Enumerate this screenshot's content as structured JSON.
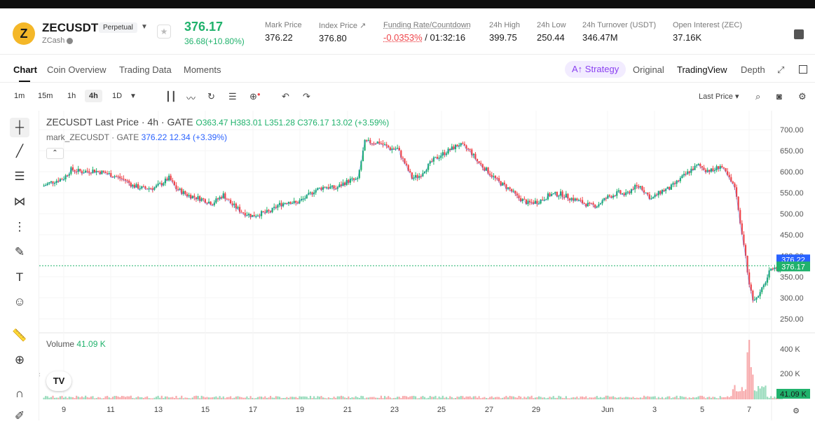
{
  "header": {
    "symbol": "ZECUSDT",
    "badge": "Perpetual",
    "subname": "ZCash",
    "coin_glyph": "Z",
    "last_price": "376.17",
    "change": "36.68(+10.80%)",
    "stats": [
      {
        "label": "Mark Price",
        "value": "376.22"
      },
      {
        "label": "Index Price ↗",
        "value": "376.80"
      },
      {
        "label": "Funding Rate/Countdown",
        "value_neg": "-0.0353%",
        "value_rest": " / 01:32:16"
      },
      {
        "label": "24h High",
        "value": "399.75"
      },
      {
        "label": "24h Low",
        "value": "250.44"
      },
      {
        "label": "24h Turnover (USDT)",
        "value": "346.47M"
      },
      {
        "label": "Open Interest (ZEC)",
        "value": "37.16K"
      }
    ]
  },
  "tabs": {
    "chart": "Chart",
    "coin_overview": "Coin Overview",
    "trading_data": "Trading Data",
    "moments": "Moments",
    "strategy": "Strategy",
    "original": "Original",
    "tradingview": "TradingView",
    "depth": "Depth"
  },
  "toolbar": {
    "timeframes": [
      "1m",
      "15m",
      "1h",
      "4h",
      "1D"
    ],
    "selected": "4h",
    "price_type": "Last Price ▾"
  },
  "legend": {
    "main_name": "ZECUSDT Last Price · 4h · GATE",
    "ohlc": "O363.47 H383.01 L351.28 C376.17 13.02 (+3.59%)",
    "mark_name": "mark_ZECUSDT · GATE",
    "mark_vals": "376.22 12.34 (+3.39%)",
    "volume_name": "Volume",
    "volume_val": "41.09 K"
  },
  "colors": {
    "up": "#20b26c",
    "down": "#ef454a",
    "mark": "#2962ff"
  },
  "chart_data": {
    "type": "candlestick",
    "x_ticks": [
      "9",
      "11",
      "13",
      "15",
      "17",
      "19",
      "21",
      "23",
      "25",
      "27",
      "29",
      "Jun",
      "3",
      "5",
      "7"
    ],
    "y_ticks": [
      700,
      650,
      600,
      550,
      500,
      450,
      400,
      350,
      300,
      250
    ],
    "y_tick_labels": [
      "700.00",
      "650.00",
      "600.00",
      "550.00",
      "500.00",
      "450.00",
      "400.00",
      "350.00",
      "300.00",
      "250.00"
    ],
    "ylim": [
      220,
      725
    ],
    "vol_ticks": [
      "400 K",
      "200 K"
    ],
    "vol_max": 520,
    "price_path": [
      [
        0,
        565
      ],
      [
        5,
        575
      ],
      [
        12,
        585
      ],
      [
        16,
        605
      ],
      [
        22,
        600
      ],
      [
        28,
        603
      ],
      [
        34,
        598
      ],
      [
        40,
        590
      ],
      [
        46,
        580
      ],
      [
        50,
        567
      ],
      [
        56,
        560
      ],
      [
        62,
        562
      ],
      [
        66,
        572
      ],
      [
        70,
        585
      ],
      [
        74,
        560
      ],
      [
        80,
        545
      ],
      [
        88,
        535
      ],
      [
        94,
        525
      ],
      [
        100,
        545
      ],
      [
        104,
        525
      ],
      [
        110,
        505
      ],
      [
        116,
        495
      ],
      [
        120,
        500
      ],
      [
        126,
        505
      ],
      [
        130,
        520
      ],
      [
        136,
        530
      ],
      [
        140,
        525
      ],
      [
        146,
        540
      ],
      [
        150,
        555
      ],
      [
        156,
        565
      ],
      [
        162,
        560
      ],
      [
        166,
        572
      ],
      [
        170,
        580
      ],
      [
        174,
        580
      ],
      [
        178,
        670
      ],
      [
        186,
        670
      ],
      [
        192,
        655
      ],
      [
        196,
        655
      ],
      [
        200,
        620
      ],
      [
        204,
        585
      ],
      [
        208,
        590
      ],
      [
        212,
        610
      ],
      [
        216,
        628
      ],
      [
        220,
        640
      ],
      [
        226,
        655
      ],
      [
        230,
        665
      ],
      [
        236,
        650
      ],
      [
        240,
        625
      ],
      [
        246,
        600
      ],
      [
        252,
        575
      ],
      [
        258,
        558
      ],
      [
        262,
        540
      ],
      [
        268,
        525
      ],
      [
        274,
        530
      ],
      [
        280,
        545
      ],
      [
        286,
        547
      ],
      [
        290,
        540
      ],
      [
        296,
        530
      ],
      [
        302,
        520
      ],
      [
        306,
        520
      ],
      [
        312,
        540
      ],
      [
        318,
        550
      ],
      [
        322,
        545
      ],
      [
        326,
        562
      ],
      [
        330,
        565
      ],
      [
        336,
        535
      ],
      [
        342,
        555
      ],
      [
        346,
        560
      ],
      [
        350,
        575
      ],
      [
        354,
        590
      ],
      [
        358,
        605
      ],
      [
        362,
        615
      ],
      [
        366,
        605
      ],
      [
        370,
        602
      ],
      [
        374,
        615
      ],
      [
        378,
        590
      ],
      [
        382,
        560
      ],
      [
        384,
        510
      ],
      [
        386,
        450
      ],
      [
        388,
        395
      ],
      [
        390,
        330
      ],
      [
        392,
        300
      ],
      [
        394,
        297
      ],
      [
        396,
        312
      ],
      [
        398,
        328
      ],
      [
        400,
        350
      ],
      [
        402,
        370
      ],
      [
        404,
        378
      ],
      [
        406,
        368
      ],
      [
        408,
        376
      ]
    ],
    "last_price": 376.17,
    "mark_price": 376.22,
    "last_label": "376.17",
    "mark_label": "376.22",
    "vol_label": "41.09 K"
  }
}
